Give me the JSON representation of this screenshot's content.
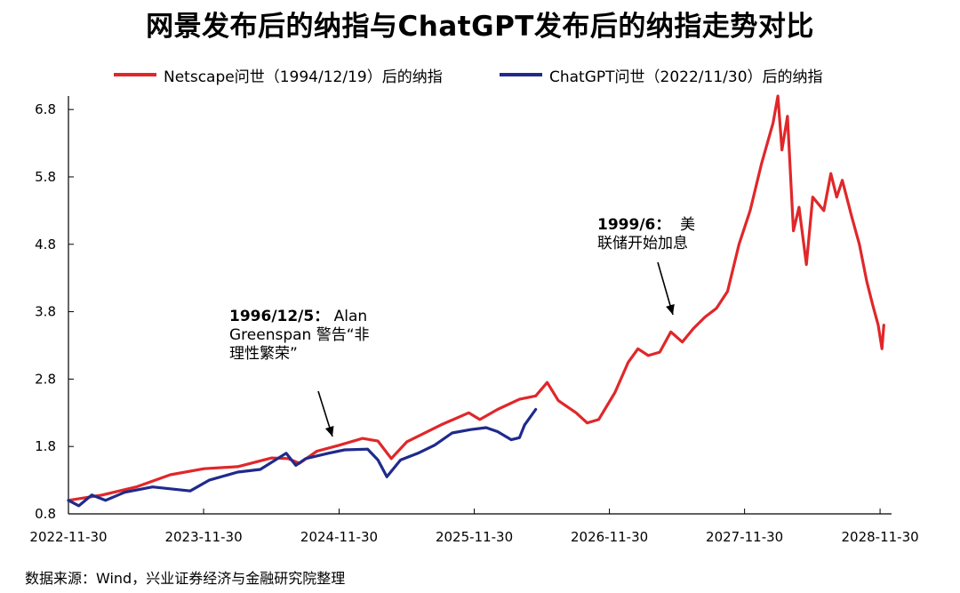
{
  "title": "网景发布后的纳指与ChatGPT发布后的纳指走势对比",
  "legend": {
    "red_label": "Netscape问世（1994/12/19）后的纳指",
    "blue_label": "ChatGPT问世（2022/11/30）后的纳指"
  },
  "colors": {
    "red": "#e0272a",
    "blue": "#1f2a8c",
    "axis": "#000000"
  },
  "source": "数据来源：Wind，兴业证券经济与金融研究院整理",
  "annotations": [
    {
      "bold": "1996/12/5：",
      "text_a": "Alan",
      "text_b": "Greenspan 警告“非",
      "text_c": "理性繁荣”"
    },
    {
      "bold": "1999/6：",
      "text_a": "美",
      "text_b": "联储开始加息"
    }
  ],
  "chart_data": {
    "type": "line",
    "title": "网景发布后的纳指与ChatGPT发布后的纳指走势对比",
    "xlabel": "",
    "ylabel": "",
    "x_ticks": [
      "2022-11-30",
      "2023-11-30",
      "2024-11-30",
      "2025-11-30",
      "2026-11-30",
      "2027-11-30",
      "2028-11-30"
    ],
    "y_ticks": [
      0.8,
      1.8,
      2.8,
      3.8,
      4.8,
      5.8,
      6.8
    ],
    "xlim": [
      "2022-11-30",
      "2028-12-31"
    ],
    "ylim": [
      0.8,
      7.0
    ],
    "legend_position": "top",
    "series": [
      {
        "name": "Netscape问世（1994/12/19）后的纳指",
        "color": "#e0272a",
        "points": [
          [
            "2022-11-30",
            1.0
          ],
          [
            "2023-03-01",
            1.08
          ],
          [
            "2023-06-01",
            1.2
          ],
          [
            "2023-09-01",
            1.38
          ],
          [
            "2023-12-01",
            1.47
          ],
          [
            "2024-03-01",
            1.5
          ],
          [
            "2024-06-01",
            1.63
          ],
          [
            "2024-07-15",
            1.62
          ],
          [
            "2024-08-15",
            1.55
          ],
          [
            "2024-10-01",
            1.73
          ],
          [
            "2024-12-01",
            1.82
          ],
          [
            "2025-02-01",
            1.92
          ],
          [
            "2025-03-15",
            1.88
          ],
          [
            "2025-04-20",
            1.62
          ],
          [
            "2025-06-01",
            1.87
          ],
          [
            "2025-09-01",
            2.12
          ],
          [
            "2025-11-15",
            2.3
          ],
          [
            "2025-12-15",
            2.2
          ],
          [
            "2026-02-01",
            2.35
          ],
          [
            "2026-04-01",
            2.5
          ],
          [
            "2026-05-15",
            2.55
          ],
          [
            "2026-06-15",
            2.75
          ],
          [
            "2026-07-15",
            2.48
          ],
          [
            "2026-09-01",
            2.3
          ],
          [
            "2026-10-01",
            2.15
          ],
          [
            "2026-11-01",
            2.2
          ],
          [
            "2026-12-15",
            2.6
          ],
          [
            "2027-01-20",
            3.05
          ],
          [
            "2027-02-15",
            3.25
          ],
          [
            "2027-03-15",
            3.15
          ],
          [
            "2027-04-15",
            3.2
          ],
          [
            "2027-05-15",
            3.5
          ],
          [
            "2027-06-15",
            3.35
          ],
          [
            "2027-07-15",
            3.55
          ],
          [
            "2027-08-15",
            3.72
          ],
          [
            "2027-09-15",
            3.85
          ],
          [
            "2027-10-15",
            4.1
          ],
          [
            "2027-11-15",
            4.8
          ],
          [
            "2027-12-15",
            5.3
          ],
          [
            "2028-01-15",
            6.0
          ],
          [
            "2028-02-15",
            6.6
          ],
          [
            "2028-02-28",
            7.0
          ],
          [
            "2028-03-10",
            6.2
          ],
          [
            "2028-03-25",
            6.7
          ],
          [
            "2028-04-10",
            5.0
          ],
          [
            "2028-04-25",
            5.35
          ],
          [
            "2028-05-15",
            4.5
          ],
          [
            "2028-06-01",
            5.5
          ],
          [
            "2028-07-01",
            5.3
          ],
          [
            "2028-07-20",
            5.85
          ],
          [
            "2028-08-05",
            5.5
          ],
          [
            "2028-08-20",
            5.75
          ],
          [
            "2028-09-15",
            5.2
          ],
          [
            "2028-10-05",
            4.8
          ],
          [
            "2028-10-25",
            4.25
          ],
          [
            "2028-11-10",
            3.9
          ],
          [
            "2028-11-25",
            3.6
          ],
          [
            "2028-12-05",
            3.25
          ],
          [
            "2028-12-10",
            3.6
          ]
        ]
      },
      {
        "name": "ChatGPT问世（2022/11/30）后的纳指",
        "color": "#1f2a8c",
        "points": [
          [
            "2022-11-30",
            1.0
          ],
          [
            "2022-12-28",
            0.92
          ],
          [
            "2023-02-01",
            1.08
          ],
          [
            "2023-03-10",
            1.0
          ],
          [
            "2023-05-01",
            1.12
          ],
          [
            "2023-07-15",
            1.2
          ],
          [
            "2023-10-25",
            1.14
          ],
          [
            "2023-12-15",
            1.3
          ],
          [
            "2024-03-01",
            1.42
          ],
          [
            "2024-05-01",
            1.46
          ],
          [
            "2024-07-10",
            1.7
          ],
          [
            "2024-08-05",
            1.52
          ],
          [
            "2024-09-01",
            1.62
          ],
          [
            "2024-11-01",
            1.7
          ],
          [
            "2024-12-15",
            1.75
          ],
          [
            "2025-02-15",
            1.76
          ],
          [
            "2025-03-15",
            1.6
          ],
          [
            "2025-04-08",
            1.35
          ],
          [
            "2025-05-15",
            1.6
          ],
          [
            "2025-07-01",
            1.7
          ],
          [
            "2025-08-15",
            1.82
          ],
          [
            "2025-10-01",
            2.0
          ],
          [
            "2025-11-20",
            2.05
          ],
          [
            "2026-01-01",
            2.08
          ],
          [
            "2026-02-01",
            2.02
          ],
          [
            "2026-03-10",
            1.9
          ],
          [
            "2026-04-01",
            1.93
          ],
          [
            "2026-04-15",
            2.12
          ],
          [
            "2026-05-15",
            2.35
          ]
        ]
      }
    ]
  }
}
